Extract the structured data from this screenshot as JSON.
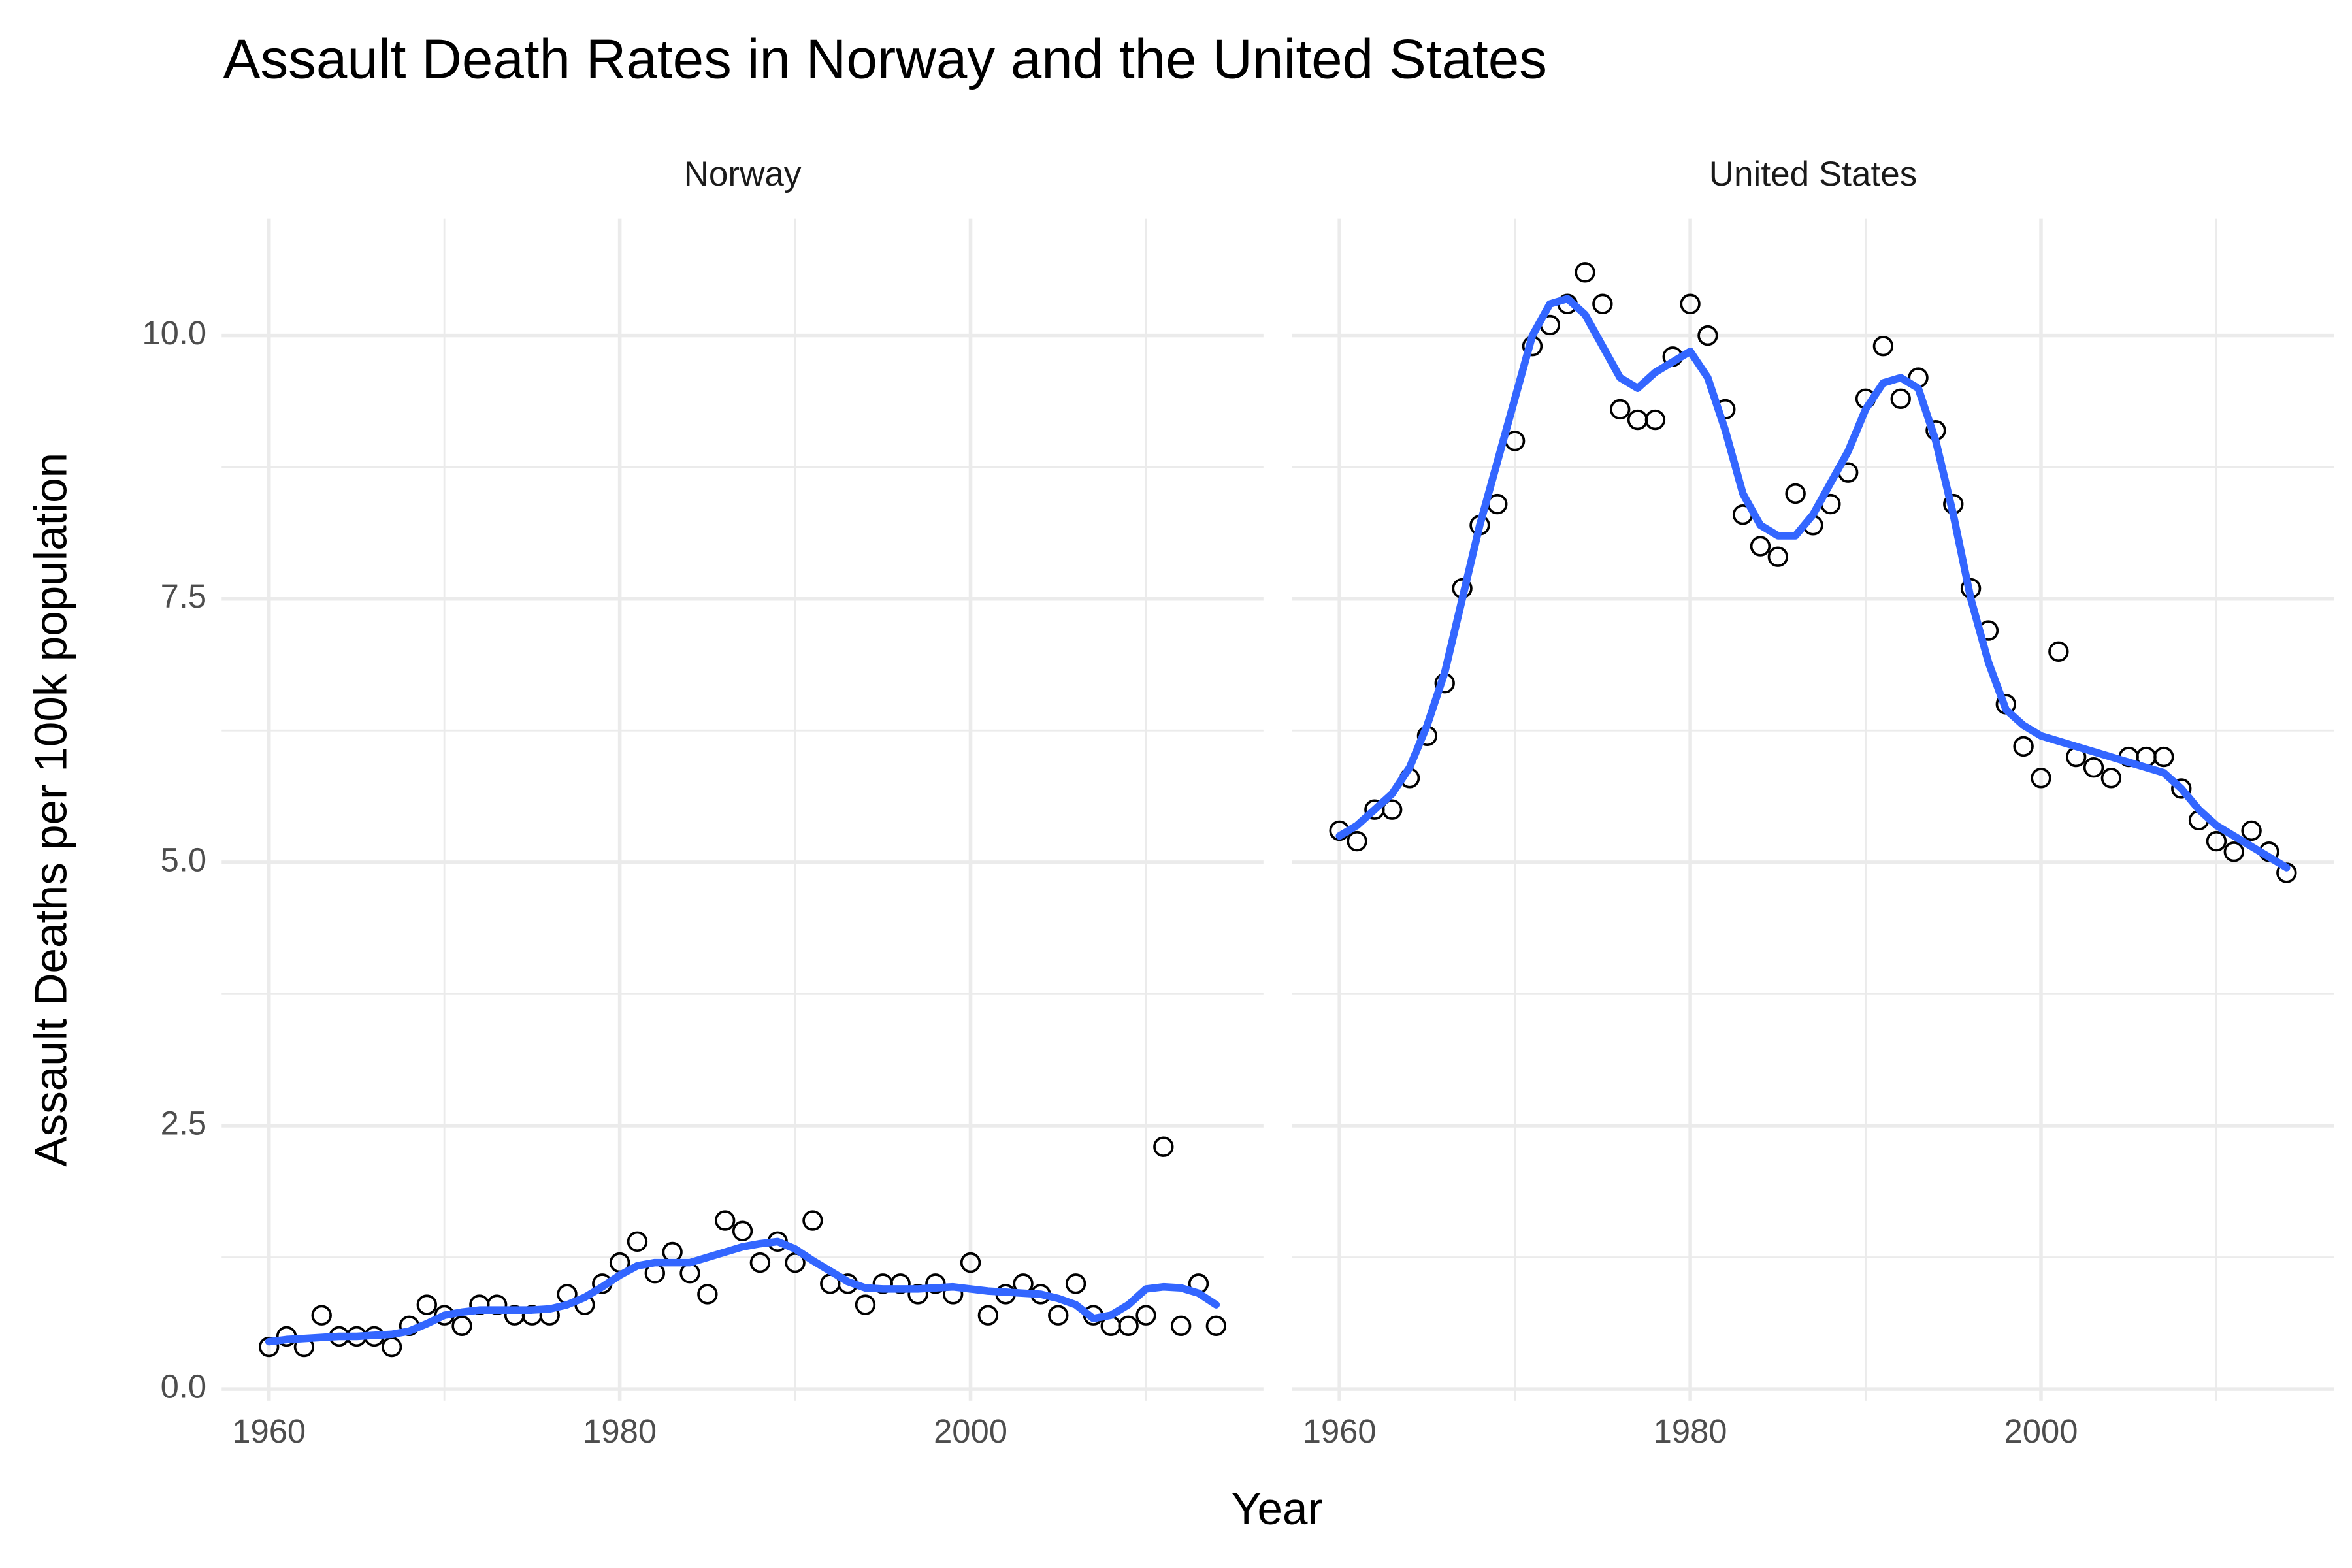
{
  "chart_data": {
    "type": "scatter",
    "title": "Assault Death Rates in Norway and the United States",
    "xlabel": "Year",
    "ylabel": "Assault Deaths per 100k population",
    "xlim": [
      1957.3,
      2016.7
    ],
    "ylim": [
      -0.11,
      11.11
    ],
    "xticks": [
      1960,
      1980,
      2000
    ],
    "yticks": [
      {
        "value": 0,
        "label": "0.0"
      },
      2.5,
      {
        "value": 5,
        "label": "5.0"
      },
      7.5,
      {
        "value": 10,
        "label": "10.0"
      }
    ],
    "xminor": [
      1970,
      1990,
      2010
    ],
    "yminor": [
      1.25,
      3.75,
      6.25,
      8.75
    ],
    "grid": true,
    "x": [
      1960,
      1961,
      1962,
      1963,
      1964,
      1965,
      1966,
      1967,
      1968,
      1969,
      1970,
      1971,
      1972,
      1973,
      1974,
      1975,
      1976,
      1977,
      1978,
      1979,
      1980,
      1981,
      1982,
      1983,
      1984,
      1985,
      1986,
      1987,
      1988,
      1989,
      1990,
      1991,
      1992,
      1993,
      1994,
      1995,
      1996,
      1997,
      1998,
      1999,
      2000,
      2001,
      2002,
      2003,
      2004,
      2005,
      2006,
      2007,
      2008,
      2009,
      2010,
      2011,
      2012,
      2013,
      2014
    ],
    "facets": [
      {
        "title": "Norway",
        "series": [
          {
            "type": "scatter",
            "color": "#000000",
            "values": [
              0.4,
              0.5,
              0.4,
              0.7,
              0.5,
              0.5,
              0.5,
              0.4,
              0.6,
              0.8,
              0.7,
              0.6,
              0.8,
              0.8,
              0.7,
              0.7,
              0.7,
              0.9,
              0.8,
              1.0,
              1.2,
              1.4,
              1.1,
              1.3,
              1.1,
              0.9,
              1.6,
              1.5,
              1.2,
              1.4,
              1.2,
              1.6,
              1.0,
              1.0,
              0.8,
              1.0,
              1.0,
              0.9,
              1.0,
              0.9,
              1.2,
              0.7,
              0.9,
              1.0,
              0.9,
              0.7,
              1.0,
              0.7,
              0.6,
              0.6,
              0.7,
              2.3,
              0.6,
              1.0,
              0.6
            ]
          },
          {
            "type": "line",
            "color": "#3366ff",
            "values": [
              0.45,
              0.47,
              0.48,
              0.49,
              0.5,
              0.5,
              0.51,
              0.52,
              0.55,
              0.62,
              0.7,
              0.73,
              0.75,
              0.75,
              0.75,
              0.75,
              0.76,
              0.8,
              0.87,
              0.97,
              1.08,
              1.17,
              1.2,
              1.2,
              1.2,
              1.25,
              1.3,
              1.35,
              1.38,
              1.4,
              1.33,
              1.22,
              1.12,
              1.02,
              0.96,
              0.95,
              0.95,
              0.95,
              0.96,
              0.97,
              0.95,
              0.93,
              0.92,
              0.91,
              0.9,
              0.86,
              0.8,
              0.67,
              0.7,
              0.8,
              0.95,
              0.97,
              0.96,
              0.91,
              0.8
            ]
          }
        ]
      },
      {
        "title": "United States",
        "series": [
          {
            "type": "scatter",
            "color": "#000000",
            "values": [
              5.3,
              5.2,
              5.5,
              5.5,
              5.8,
              6.2,
              6.7,
              7.6,
              8.2,
              8.4,
              9.0,
              9.9,
              10.1,
              10.3,
              10.6,
              10.3,
              9.3,
              9.2,
              9.2,
              9.8,
              10.3,
              10.0,
              9.3,
              8.3,
              8.0,
              7.9,
              8.5,
              8.2,
              8.4,
              8.7,
              9.4,
              9.9,
              9.4,
              9.6,
              9.1,
              8.4,
              7.6,
              7.2,
              6.5,
              6.1,
              5.8,
              7.0,
              6.0,
              5.9,
              5.8,
              6.0,
              6.0,
              6.0,
              5.7,
              5.4,
              5.2,
              5.1,
              5.3,
              5.1,
              4.9
            ]
          },
          {
            "type": "line",
            "color": "#3366ff",
            "values": [
              5.25,
              5.35,
              5.5,
              5.65,
              5.9,
              6.3,
              6.8,
              7.5,
              8.2,
              8.8,
              9.4,
              10.0,
              10.3,
              10.35,
              10.2,
              9.9,
              9.6,
              9.5,
              9.65,
              9.75,
              9.85,
              9.6,
              9.1,
              8.5,
              8.2,
              8.1,
              8.1,
              8.3,
              8.6,
              8.9,
              9.3,
              9.55,
              9.6,
              9.5,
              9.0,
              8.3,
              7.5,
              6.9,
              6.45,
              6.3,
              6.2,
              6.15,
              6.1,
              6.05,
              6.0,
              5.95,
              5.9,
              5.85,
              5.7,
              5.5,
              5.35,
              5.25,
              5.15,
              5.05,
              4.95
            ]
          }
        ]
      }
    ]
  }
}
